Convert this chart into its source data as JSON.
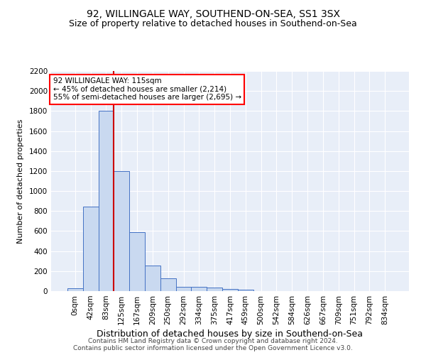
{
  "title1": "92, WILLINGALE WAY, SOUTHEND-ON-SEA, SS1 3SX",
  "title2": "Size of property relative to detached houses in Southend-on-Sea",
  "xlabel": "Distribution of detached houses by size in Southend-on-Sea",
  "ylabel": "Number of detached properties",
  "bar_labels": [
    "0sqm",
    "42sqm",
    "83sqm",
    "125sqm",
    "167sqm",
    "209sqm",
    "250sqm",
    "292sqm",
    "334sqm",
    "375sqm",
    "417sqm",
    "459sqm",
    "500sqm",
    "542sqm",
    "584sqm",
    "626sqm",
    "667sqm",
    "709sqm",
    "751sqm",
    "792sqm",
    "834sqm"
  ],
  "bar_values": [
    25,
    845,
    1800,
    1200,
    590,
    255,
    130,
    45,
    40,
    32,
    18,
    12,
    0,
    0,
    0,
    0,
    0,
    0,
    0,
    0,
    0
  ],
  "bar_color": "#c9d9f0",
  "bar_edge_color": "#4472c4",
  "ylim": [
    0,
    2200
  ],
  "yticks": [
    0,
    200,
    400,
    600,
    800,
    1000,
    1200,
    1400,
    1600,
    1800,
    2000,
    2200
  ],
  "red_line_x": 2.5,
  "annotation_text": "92 WILLINGALE WAY: 115sqm\n← 45% of detached houses are smaller (2,214)\n55% of semi-detached houses are larger (2,695) →",
  "annotation_box_color": "white",
  "annotation_box_edge": "red",
  "red_line_color": "#cc0000",
  "footer1": "Contains HM Land Registry data © Crown copyright and database right 2024.",
  "footer2": "Contains public sector information licensed under the Open Government Licence v3.0.",
  "background_color": "#e8eef8",
  "grid_color": "white",
  "title1_fontsize": 10,
  "title2_fontsize": 9,
  "xlabel_fontsize": 9,
  "ylabel_fontsize": 8,
  "tick_fontsize": 7.5,
  "footer_fontsize": 6.5
}
